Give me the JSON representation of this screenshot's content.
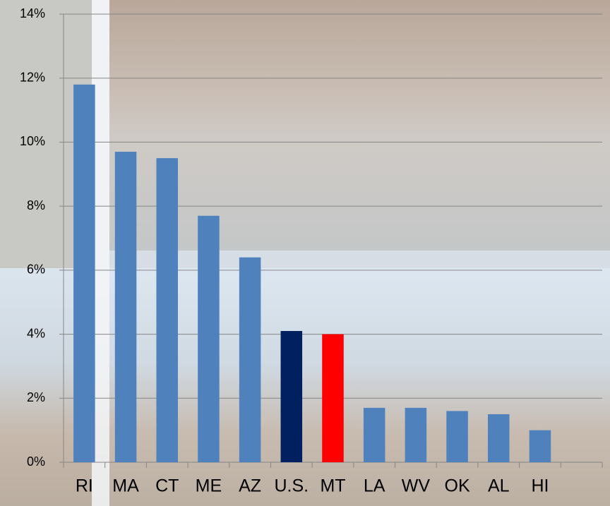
{
  "chart_data": {
    "type": "bar",
    "categories": [
      "RI",
      "MA",
      "CT",
      "ME",
      "AZ",
      "U.S.",
      "MT",
      "LA",
      "WV",
      "OK",
      "AL",
      "HI",
      null
    ],
    "values": [
      11.8,
      9.7,
      9.5,
      7.7,
      6.4,
      4.1,
      4.0,
      1.7,
      1.7,
      1.6,
      1.5,
      1.0,
      null
    ],
    "colors": [
      "#4f81bd",
      "#4f81bd",
      "#4f81bd",
      "#4f81bd",
      "#4f81bd",
      "#002060",
      "#ff0000",
      "#4f81bd",
      "#4f81bd",
      "#4f81bd",
      "#4f81bd",
      "#4f81bd",
      "#4f81bd"
    ],
    "ylim": [
      0,
      14
    ],
    "yticks": [
      {
        "value": 0,
        "label": "0%"
      },
      {
        "value": 2,
        "label": "2%"
      },
      {
        "value": 4,
        "label": "4%"
      },
      {
        "value": 6,
        "label": "6%"
      },
      {
        "value": 8,
        "label": "8%"
      },
      {
        "value": 10,
        "label": "10%"
      },
      {
        "value": 12,
        "label": "12%"
      },
      {
        "value": 14,
        "label": "14%"
      }
    ],
    "grid": true
  }
}
